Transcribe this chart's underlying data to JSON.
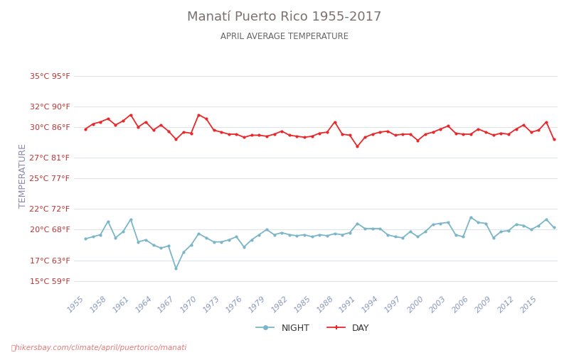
{
  "title": "Manatí Puerto Rico 1955-2017",
  "subtitle": "APRIL AVERAGE TEMPERATURE",
  "ylabel": "TEMPERATURE",
  "watermark": "hikersbay.com/climate/april/puertorico/manati",
  "years": [
    1955,
    1956,
    1957,
    1958,
    1959,
    1960,
    1961,
    1962,
    1963,
    1964,
    1965,
    1966,
    1967,
    1968,
    1969,
    1970,
    1971,
    1972,
    1973,
    1974,
    1975,
    1976,
    1977,
    1978,
    1979,
    1980,
    1981,
    1982,
    1983,
    1984,
    1985,
    1986,
    1987,
    1988,
    1989,
    1990,
    1991,
    1992,
    1993,
    1994,
    1995,
    1996,
    1997,
    1998,
    1999,
    2000,
    2001,
    2002,
    2003,
    2004,
    2005,
    2006,
    2007,
    2008,
    2009,
    2010,
    2011,
    2012,
    2013,
    2014,
    2015,
    2016,
    2017
  ],
  "day_temps": [
    29.8,
    30.3,
    30.5,
    30.8,
    30.2,
    30.6,
    31.2,
    30.0,
    30.5,
    29.7,
    30.2,
    29.6,
    28.8,
    29.5,
    29.4,
    31.2,
    30.8,
    29.7,
    29.5,
    29.3,
    29.3,
    29.0,
    29.2,
    29.2,
    29.1,
    29.3,
    29.6,
    29.2,
    29.1,
    29.0,
    29.1,
    29.4,
    29.5,
    30.5,
    29.3,
    29.2,
    28.1,
    29.0,
    29.3,
    29.5,
    29.6,
    29.2,
    29.3,
    29.3,
    28.7,
    29.3,
    29.5,
    29.8,
    30.1,
    29.4,
    29.3,
    29.3,
    29.8,
    29.5,
    29.2,
    29.4,
    29.3,
    29.8,
    30.2,
    29.5,
    29.7,
    30.5,
    28.8
  ],
  "night_temps": [
    19.1,
    19.3,
    19.5,
    20.8,
    19.2,
    19.8,
    21.0,
    18.8,
    19.0,
    18.5,
    18.2,
    18.4,
    16.2,
    17.8,
    18.5,
    19.6,
    19.2,
    18.8,
    18.8,
    19.0,
    19.3,
    18.3,
    19.0,
    19.5,
    20.0,
    19.5,
    19.7,
    19.5,
    19.4,
    19.5,
    19.3,
    19.5,
    19.4,
    19.6,
    19.5,
    19.7,
    20.6,
    20.1,
    20.1,
    20.1,
    19.5,
    19.3,
    19.2,
    19.8,
    19.3,
    19.8,
    20.5,
    20.6,
    20.7,
    19.5,
    19.3,
    21.2,
    20.7,
    20.6,
    19.2,
    19.8,
    19.9,
    20.5,
    20.4,
    20.0,
    20.4,
    21.0,
    20.2
  ],
  "yticks_c": [
    15,
    17,
    20,
    22,
    25,
    27,
    30,
    32,
    35
  ],
  "yticks_f": [
    59,
    63,
    68,
    72,
    77,
    81,
    86,
    90,
    95
  ],
  "xtick_years": [
    1955,
    1958,
    1961,
    1964,
    1967,
    1970,
    1973,
    1976,
    1979,
    1982,
    1985,
    1988,
    1991,
    1994,
    1997,
    2000,
    2003,
    2006,
    2009,
    2012,
    2015
  ],
  "day_color": "#e8282a",
  "night_color": "#7ab6c8",
  "title_color": "#7a7070",
  "subtitle_color": "#666666",
  "ylabel_color": "#8888aa",
  "tick_label_color": "#c03030",
  "xtick_label_color": "#8899bb",
  "grid_color": "#dde4ea",
  "bg_color": "#ffffff",
  "marker_size": 3,
  "line_width": 1.3,
  "ylim": [
    14,
    36.5
  ],
  "xlim": [
    1953.5,
    2017.5
  ],
  "watermark_color": "#e87878",
  "legend_text_color": "#333333"
}
